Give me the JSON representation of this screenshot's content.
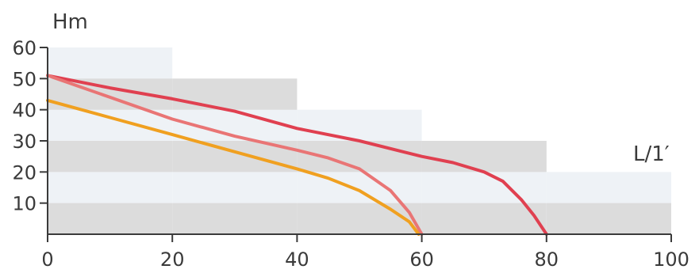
{
  "chart_data": {
    "type": "line",
    "ylabel": "Hm",
    "xlabel": "L/1′",
    "xlim": [
      0,
      100
    ],
    "ylim": [
      0,
      60
    ],
    "x_ticks": [
      "0",
      "20",
      "40",
      "60",
      "80",
      "100"
    ],
    "y_ticks": [
      "10",
      "20",
      "30",
      "40",
      "50",
      "60"
    ],
    "grid": false,
    "background_blocks": [
      {
        "x": [
          0,
          20
        ],
        "y": [
          0,
          60
        ]
      },
      {
        "x": [
          20,
          40
        ],
        "y": [
          0,
          50
        ]
      },
      {
        "x": [
          40,
          60
        ],
        "y": [
          0,
          40
        ]
      },
      {
        "x": [
          60,
          80
        ],
        "y": [
          0,
          30
        ]
      },
      {
        "x": [
          80,
          100
        ],
        "y": [
          0,
          20
        ]
      }
    ],
    "shading_bands": [
      {
        "y": [
          0,
          10
        ],
        "color": "#dcdcdc"
      },
      {
        "y": [
          20,
          30
        ],
        "color": "#dcdcdc"
      },
      {
        "y": [
          40,
          50
        ],
        "color": "#dcdcdc"
      }
    ],
    "series": [
      {
        "color": "#e04050",
        "points": [
          [
            0,
            51
          ],
          [
            10,
            47
          ],
          [
            20,
            43.5
          ],
          [
            30,
            39.5
          ],
          [
            40,
            34
          ],
          [
            50,
            30
          ],
          [
            60,
            25
          ],
          [
            65,
            23
          ],
          [
            70,
            20
          ],
          [
            73,
            17
          ],
          [
            76,
            11
          ],
          [
            78,
            6
          ],
          [
            80,
            0
          ]
        ]
      },
      {
        "color": "#e97575",
        "points": [
          [
            0,
            51
          ],
          [
            10,
            44
          ],
          [
            20,
            37
          ],
          [
            30,
            31.5
          ],
          [
            40,
            27
          ],
          [
            45,
            24.5
          ],
          [
            50,
            21
          ],
          [
            55,
            14
          ],
          [
            58,
            7
          ],
          [
            60,
            0
          ]
        ]
      },
      {
        "color": "#f0a020",
        "points": [
          [
            0,
            43
          ],
          [
            10,
            37.5
          ],
          [
            20,
            32
          ],
          [
            30,
            26.5
          ],
          [
            40,
            21
          ],
          [
            45,
            18
          ],
          [
            50,
            14
          ],
          [
            55,
            8
          ],
          [
            58,
            4
          ],
          [
            59.5,
            0
          ]
        ]
      }
    ]
  }
}
